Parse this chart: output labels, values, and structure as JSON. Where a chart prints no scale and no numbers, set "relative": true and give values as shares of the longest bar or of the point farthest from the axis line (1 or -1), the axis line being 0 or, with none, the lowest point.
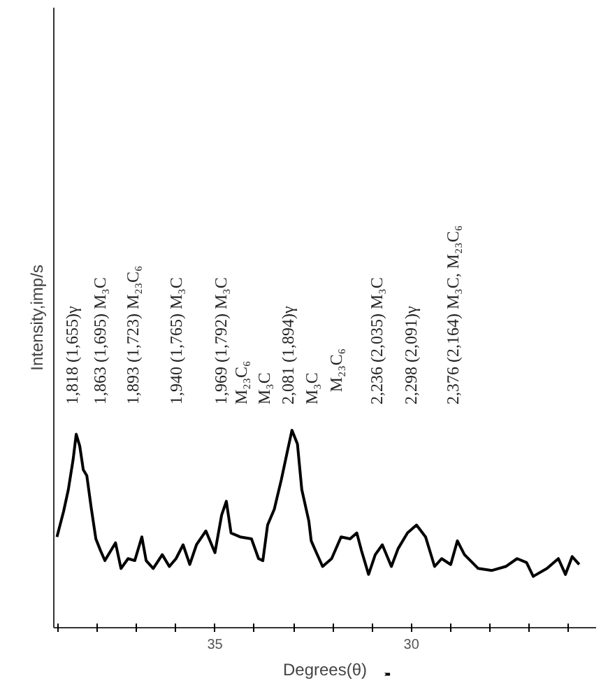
{
  "chart_data": {
    "type": "line",
    "xlabel": "Degrees(θ)",
    "ylabel": "Intensity,imp/s",
    "relative": true,
    "tick_labels": "x",
    "grid": false,
    "marker": "none",
    "line_style": "solid",
    "xlim": [
      39.1,
      25.3
    ],
    "xticks": [
      {
        "value": 39,
        "label": null
      },
      {
        "value": 38,
        "label": null
      },
      {
        "value": 37,
        "label": null
      },
      {
        "value": 36,
        "label": null
      },
      35,
      {
        "value": 34,
        "label": null
      },
      {
        "value": 33,
        "label": null
      },
      {
        "value": 32,
        "label": null
      },
      {
        "value": 31,
        "label": null
      },
      30,
      {
        "value": 29,
        "label": null
      },
      {
        "value": 28,
        "label": null
      },
      {
        "value": 27,
        "label": null
      },
      {
        "value": 26,
        "label": null
      }
    ],
    "series": [
      {
        "color": "#000000",
        "x": [
          39.02,
          38.85,
          38.73,
          38.61,
          38.53,
          38.44,
          38.35,
          38.26,
          38.15,
          38.03,
          37.91,
          37.8,
          37.68,
          37.53,
          37.39,
          37.21,
          37.04,
          36.86,
          36.75,
          36.57,
          36.34,
          36.16,
          35.99,
          35.81,
          35.64,
          35.47,
          35.23,
          35.0,
          34.83,
          34.71,
          34.59,
          34.36,
          34.07,
          33.89,
          33.78,
          33.66,
          33.49,
          33.31,
          33.16,
          33.04,
          32.9,
          32.79,
          32.61,
          32.55,
          32.44,
          32.26,
          32.03,
          31.79,
          31.56,
          31.39,
          31.27,
          31.09,
          30.92,
          30.74,
          30.51,
          30.34,
          30.1,
          29.87,
          29.64,
          29.41,
          29.23,
          29.0,
          28.83,
          28.65,
          28.3,
          27.95,
          27.6,
          27.31,
          27.07,
          26.9,
          26.55,
          26.26,
          26.08,
          25.91,
          25.73
        ],
        "values": [
          0.46,
          0.59,
          0.7,
          0.85,
          0.98,
          0.92,
          0.8,
          0.77,
          0.61,
          0.45,
          0.39,
          0.34,
          0.38,
          0.43,
          0.3,
          0.35,
          0.34,
          0.46,
          0.34,
          0.3,
          0.37,
          0.31,
          0.35,
          0.42,
          0.32,
          0.42,
          0.49,
          0.38,
          0.57,
          0.64,
          0.48,
          0.46,
          0.45,
          0.35,
          0.34,
          0.52,
          0.6,
          0.75,
          0.89,
          1.0,
          0.93,
          0.7,
          0.54,
          0.44,
          0.39,
          0.31,
          0.35,
          0.46,
          0.45,
          0.48,
          0.39,
          0.27,
          0.37,
          0.42,
          0.31,
          0.4,
          0.48,
          0.52,
          0.46,
          0.31,
          0.35,
          0.32,
          0.44,
          0.37,
          0.3,
          0.29,
          0.31,
          0.35,
          0.33,
          0.26,
          0.3,
          0.35,
          0.27,
          0.36,
          0.32
        ]
      }
    ],
    "annotations": [
      "1,818 (1,655)γ",
      "1,863 (1,695) M₃C",
      "1,893 (1,723) M₂₃C₆",
      "1,940 (1,765) M₃C",
      "1,969 (1,792) M₃C",
      "M₂₃C₆\nM₃C\n2,081 (1,894)γ\nM₃C",
      "M₂₃C₆",
      "2,236 (2,035) M₃C",
      "2,298 (2,091)γ",
      "2,376 (2,164) M₃C, M₂₃C₆"
    ]
  }
}
